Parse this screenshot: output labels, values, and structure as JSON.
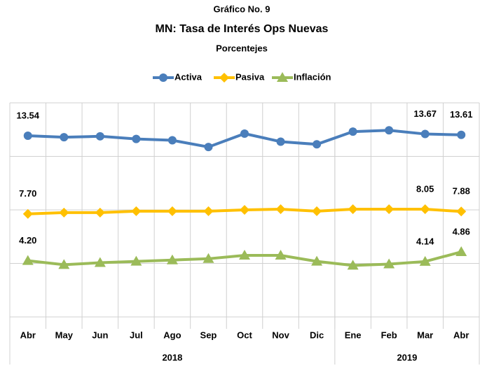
{
  "chart_data": {
    "type": "line",
    "title": "Gráfico No. 9",
    "subtitle": "MN: Tasa de Interés Ops Nuevas",
    "y_label": "Porcentejes",
    "categories": [
      "Abr",
      "May",
      "Jun",
      "Jul",
      "Ago",
      "Sep",
      "Oct",
      "Nov",
      "Dic",
      "Ene",
      "Feb",
      "Mar",
      "Abr"
    ],
    "x_groups": [
      {
        "label": "2018",
        "from": 0,
        "to": 8
      },
      {
        "label": "2019",
        "from": 9,
        "to": 12
      }
    ],
    "series": [
      {
        "name": "Activa",
        "color": "#4a7ebb",
        "marker": "circle",
        "values": [
          13.54,
          13.43,
          13.5,
          13.3,
          13.2,
          12.7,
          13.7,
          13.1,
          12.9,
          13.85,
          13.95,
          13.67,
          13.61
        ],
        "value_labels": [
          "13.54",
          null,
          null,
          null,
          null,
          null,
          null,
          null,
          null,
          null,
          null,
          "13.67",
          "13.61"
        ]
      },
      {
        "name": "Pasiva",
        "color": "#ffc000",
        "marker": "diamond",
        "values": [
          7.7,
          7.8,
          7.8,
          7.9,
          7.9,
          7.9,
          8.0,
          8.05,
          7.9,
          8.05,
          8.05,
          8.05,
          7.88
        ],
        "value_labels": [
          "7.70",
          null,
          null,
          null,
          null,
          null,
          null,
          null,
          null,
          null,
          null,
          "8.05",
          "7.88"
        ]
      },
      {
        "name": "Inflación",
        "color": "#9bbb59",
        "marker": "triangle",
        "values": [
          4.2,
          3.9,
          4.05,
          4.15,
          4.25,
          4.35,
          4.6,
          4.6,
          4.15,
          3.85,
          3.95,
          4.14,
          4.86
        ],
        "value_labels": [
          "4.20",
          null,
          null,
          null,
          null,
          null,
          null,
          null,
          null,
          null,
          null,
          "4.14",
          "4.86"
        ]
      }
    ],
    "ylim": [
      0,
      16
    ],
    "yticks": [
      0,
      4,
      8,
      12,
      16
    ],
    "grid": true,
    "legend": "top"
  }
}
